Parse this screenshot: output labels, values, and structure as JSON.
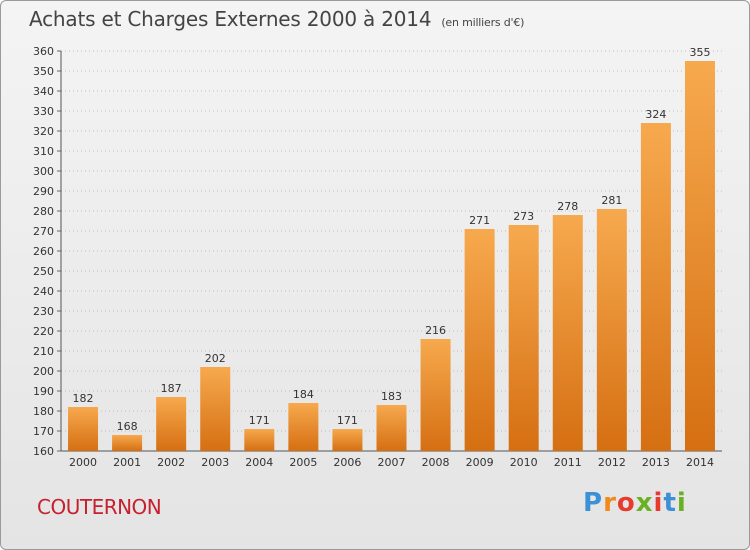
{
  "header": {
    "title": "Achats et Charges Externes 2000 à 2014",
    "subtitle": "(en milliers d'€)"
  },
  "footer": {
    "commune": "COUTERNON",
    "logo_letters": [
      "P",
      "r",
      "o",
      "x",
      "i",
      "t",
      "i"
    ],
    "logo_colors": [
      "#3d8fd6",
      "#f08a1c",
      "#e63b2e",
      "#6ab023",
      "#e63b2e",
      "#3d8fd6",
      "#6ab023"
    ]
  },
  "colors": {
    "bar_light": "#f7a94e",
    "bar_dark": "#d56f12",
    "grid": "#bdbdbd",
    "commune": "#c7202e"
  },
  "chart_data": {
    "type": "bar",
    "title": "Achats et Charges Externes 2000 à 2014",
    "subtitle": "(en milliers d'€)",
    "categories": [
      "2000",
      "2001",
      "2002",
      "2003",
      "2004",
      "2005",
      "2006",
      "2007",
      "2008",
      "2009",
      "2010",
      "2011",
      "2012",
      "2013",
      "2014"
    ],
    "values": [
      182,
      168,
      187,
      202,
      171,
      184,
      171,
      183,
      216,
      271,
      273,
      278,
      281,
      324,
      355
    ],
    "ylim": [
      160,
      360
    ],
    "ytick_step": 10,
    "grid": true,
    "legend": "none"
  }
}
